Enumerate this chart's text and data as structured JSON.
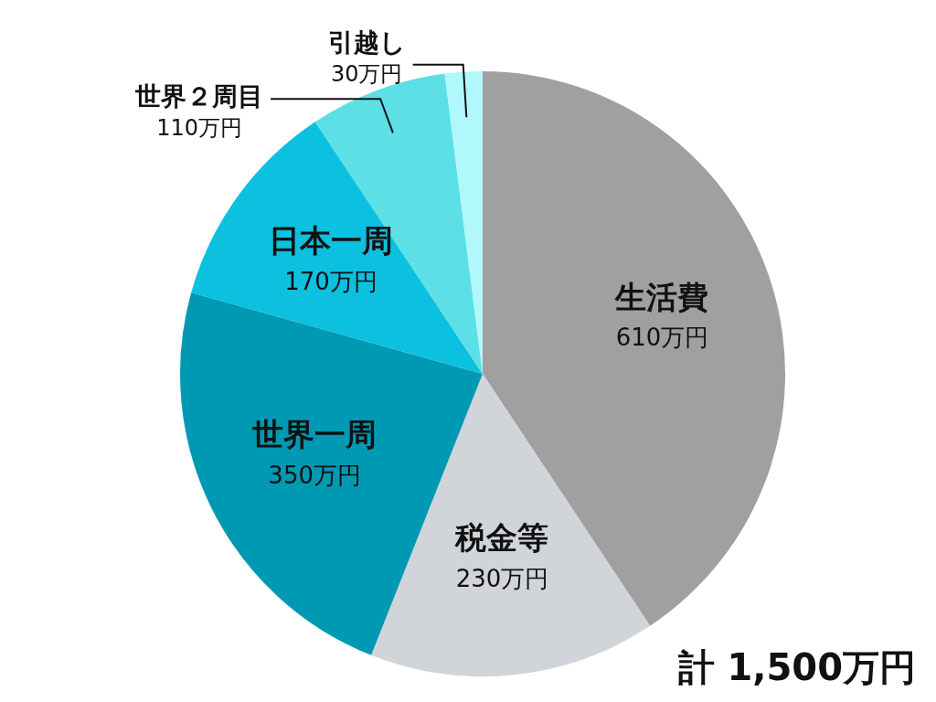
{
  "chart_data": {
    "type": "pie",
    "categories": [
      "生活費",
      "税金等",
      "世界一周",
      "日本一周",
      "世界２周目",
      "引越し"
    ],
    "values": [
      610,
      230,
      350,
      170,
      110,
      30
    ],
    "value_labels": [
      "610万円",
      "230万円",
      "350万円",
      "170万円",
      "110万円",
      "30万円"
    ],
    "colors": [
      "#a0a0a0",
      "#d1d5da",
      "#0099b3",
      "#0cc0e0",
      "#5ce0e6",
      "#b0f8fc"
    ],
    "legend": false,
    "annotations": [
      "計 1,500万円"
    ]
  }
}
